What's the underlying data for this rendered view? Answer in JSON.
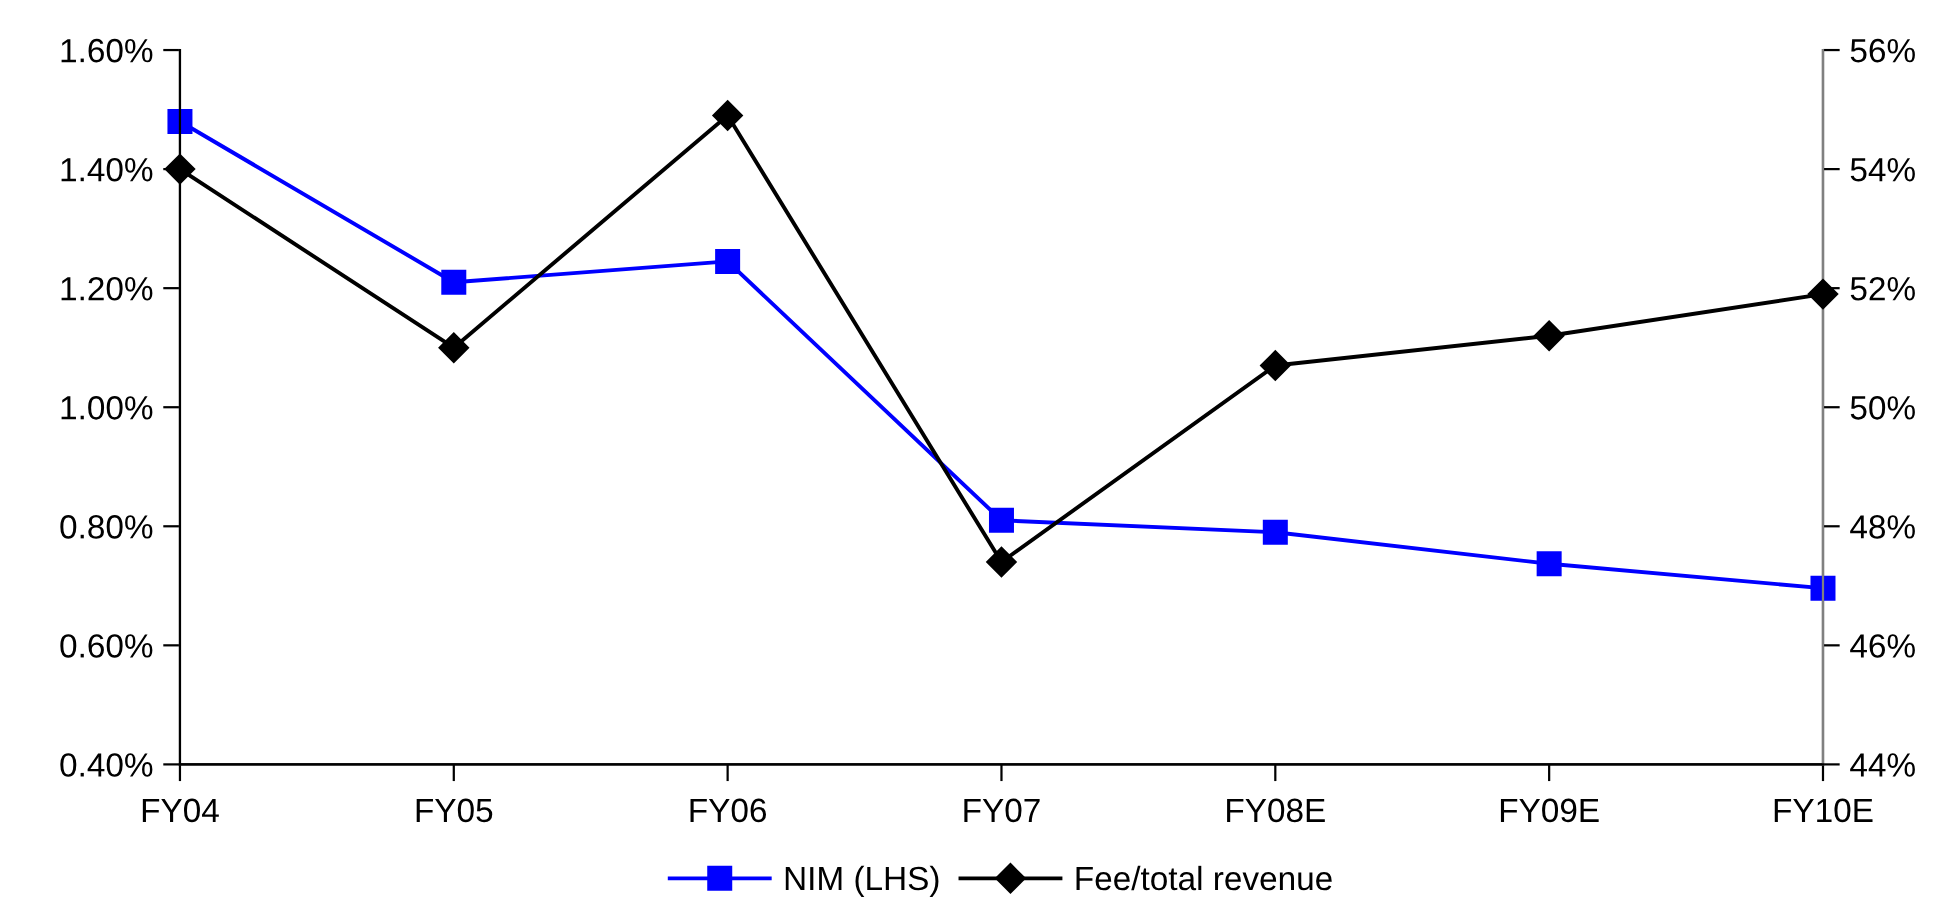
{
  "chart_data": {
    "type": "line",
    "categories": [
      "FY04",
      "FY05",
      "FY06",
      "FY07",
      "FY08E",
      "FY09E",
      "FY10E"
    ],
    "series": [
      {
        "name": "NIM (LHS)",
        "color": "#0000ff",
        "marker": "square",
        "values": [
          1.48,
          1.21,
          1.245,
          0.81,
          0.79,
          0.737,
          0.696
        ]
      },
      {
        "name": "Fee/total revenue",
        "color": "#000000",
        "marker": "diamond",
        "axis": "y2",
        "values": [
          54.0,
          51.0,
          54.9,
          47.4,
          50.7,
          51.2,
          51.9
        ]
      }
    ],
    "ylim": [
      0.4,
      1.6
    ],
    "yticks": [
      {
        "value": 0.4,
        "label": "0.40%"
      },
      {
        "value": 0.6,
        "label": "0.60%"
      },
      {
        "value": 0.8,
        "label": "0.80%"
      },
      {
        "value": 1.0,
        "label": "1.00%"
      },
      {
        "value": 1.2,
        "label": "1.20%"
      },
      {
        "value": 1.4,
        "label": "1.40%"
      },
      {
        "value": 1.6,
        "label": "1.60%"
      }
    ],
    "y2lim": [
      44,
      56
    ],
    "y2ticks": [
      {
        "value": 44,
        "label": "44%"
      },
      {
        "value": 46,
        "label": "46%"
      },
      {
        "value": 48,
        "label": "48%"
      },
      {
        "value": 50,
        "label": "50%"
      },
      {
        "value": 52,
        "label": "52%"
      },
      {
        "value": 54,
        "label": "54%"
      },
      {
        "value": 56,
        "label": "56%"
      }
    ],
    "grid": false,
    "legend": "bottom",
    "line_style": "solid"
  }
}
